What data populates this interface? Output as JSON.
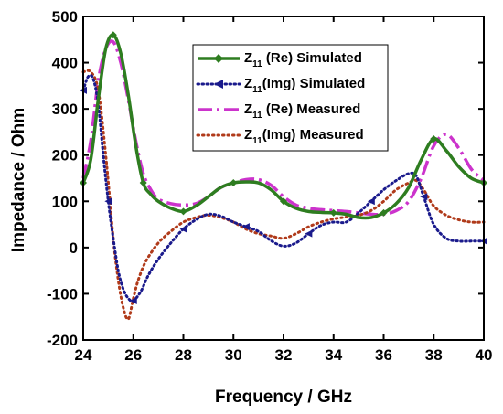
{
  "chart_data": {
    "type": "line",
    "xlabel": "Frequency / GHz",
    "ylabel": "Impedance / Ohm",
    "xlim": [
      24,
      40
    ],
    "ylim": [
      -200,
      500
    ],
    "xticks": [
      "24",
      "26",
      "28",
      "30",
      "32",
      "34",
      "36",
      "38",
      "40"
    ],
    "yticks": [
      "-200",
      "-100",
      "0",
      "100",
      "200",
      "300",
      "400",
      "500"
    ],
    "grid": false,
    "legend_position": "top-right",
    "series": [
      {
        "name": "Z11 (Re) Simulated",
        "legend": {
          "main": "Z",
          "sub": "11",
          "rest": " (Re) Simulated"
        },
        "color": "#2e7d20",
        "style": "solid-diamond",
        "x": [
          24.0,
          24.3,
          24.6,
          24.9,
          25.2,
          25.5,
          25.8,
          26.1,
          26.4,
          26.7,
          27.0,
          27.5,
          28.0,
          28.5,
          29.0,
          29.5,
          30.0,
          30.5,
          31.0,
          31.5,
          32.0,
          32.5,
          33.0,
          33.5,
          34.0,
          34.5,
          35.0,
          35.5,
          36.0,
          36.5,
          37.0,
          37.5,
          38.0,
          38.5,
          39.0,
          39.5,
          40.0
        ],
        "y": [
          140,
          190,
          320,
          430,
          460,
          420,
          330,
          220,
          140,
          115,
          100,
          85,
          78,
          90,
          110,
          130,
          140,
          142,
          140,
          125,
          100,
          85,
          78,
          76,
          75,
          72,
          65,
          65,
          75,
          95,
          130,
          190,
          235,
          210,
          175,
          150,
          140
        ]
      },
      {
        "name": "Z11(Img) Simulated",
        "legend": {
          "main": "Z",
          "sub": "11",
          "rest": "(Img) Simulated"
        },
        "color": "#1a1a8c",
        "style": "dot-triangle",
        "x": [
          24.0,
          24.2,
          24.4,
          24.6,
          24.8,
          25.0,
          25.2,
          25.4,
          25.6,
          25.8,
          26.0,
          26.3,
          26.6,
          27.0,
          27.5,
          28.0,
          28.5,
          29.0,
          29.5,
          30.0,
          30.5,
          31.0,
          31.5,
          32.0,
          32.5,
          33.0,
          33.5,
          34.0,
          34.5,
          35.0,
          35.5,
          36.0,
          36.5,
          37.0,
          37.3,
          37.6,
          38.0,
          38.5,
          39.0,
          39.5,
          40.0
        ],
        "y": [
          340,
          370,
          365,
          310,
          200,
          100,
          20,
          -50,
          -90,
          -110,
          -115,
          -95,
          -60,
          -25,
          10,
          40,
          60,
          72,
          68,
          55,
          45,
          35,
          15,
          3,
          10,
          30,
          48,
          55,
          55,
          75,
          100,
          125,
          145,
          160,
          155,
          110,
          50,
          20,
          14,
          14,
          14
        ]
      },
      {
        "name": "Z11 (Re) Measured",
        "legend": {
          "main": "Z",
          "sub": "11",
          "rest": " (Re) Measured"
        },
        "color": "#cc33cc",
        "style": "dash-dot",
        "x": [
          24.0,
          24.3,
          24.6,
          24.9,
          25.2,
          25.5,
          25.8,
          26.1,
          26.4,
          26.7,
          27.0,
          27.5,
          28.0,
          28.5,
          29.0,
          29.5,
          30.0,
          30.5,
          31.0,
          31.5,
          32.0,
          32.5,
          33.0,
          33.5,
          34.0,
          34.5,
          35.0,
          35.5,
          36.0,
          36.5,
          37.0,
          37.5,
          38.0,
          38.5,
          39.0,
          39.5,
          40.0
        ],
        "y": [
          150,
          230,
          360,
          430,
          445,
          400,
          320,
          230,
          160,
          125,
          105,
          95,
          92,
          95,
          110,
          130,
          140,
          147,
          147,
          135,
          110,
          92,
          85,
          82,
          80,
          78,
          75,
          72,
          72,
          80,
          100,
          150,
          220,
          245,
          215,
          170,
          145
        ]
      },
      {
        "name": "Z11(Img) Measured",
        "legend": {
          "main": "Z",
          "sub": "11",
          "rest": "(Img) Measured"
        },
        "color": "#b03a1a",
        "style": "dotted",
        "x": [
          24.0,
          24.3,
          24.6,
          24.9,
          25.2,
          25.4,
          25.6,
          25.8,
          26.0,
          26.2,
          26.5,
          27.0,
          27.5,
          28.0,
          28.5,
          29.0,
          29.5,
          30.0,
          30.5,
          31.0,
          31.5,
          32.0,
          32.5,
          33.0,
          33.5,
          34.0,
          34.5,
          35.0,
          35.5,
          36.0,
          36.5,
          37.0,
          37.3,
          37.6,
          38.0,
          38.5,
          39.0,
          39.5,
          40.0
        ],
        "y": [
          380,
          380,
          340,
          200,
          20,
          -70,
          -130,
          -155,
          -110,
          -70,
          -30,
          10,
          35,
          55,
          65,
          70,
          65,
          55,
          40,
          30,
          25,
          20,
          30,
          45,
          55,
          62,
          66,
          70,
          80,
          100,
          125,
          140,
          145,
          125,
          90,
          70,
          60,
          55,
          55
        ]
      }
    ]
  }
}
